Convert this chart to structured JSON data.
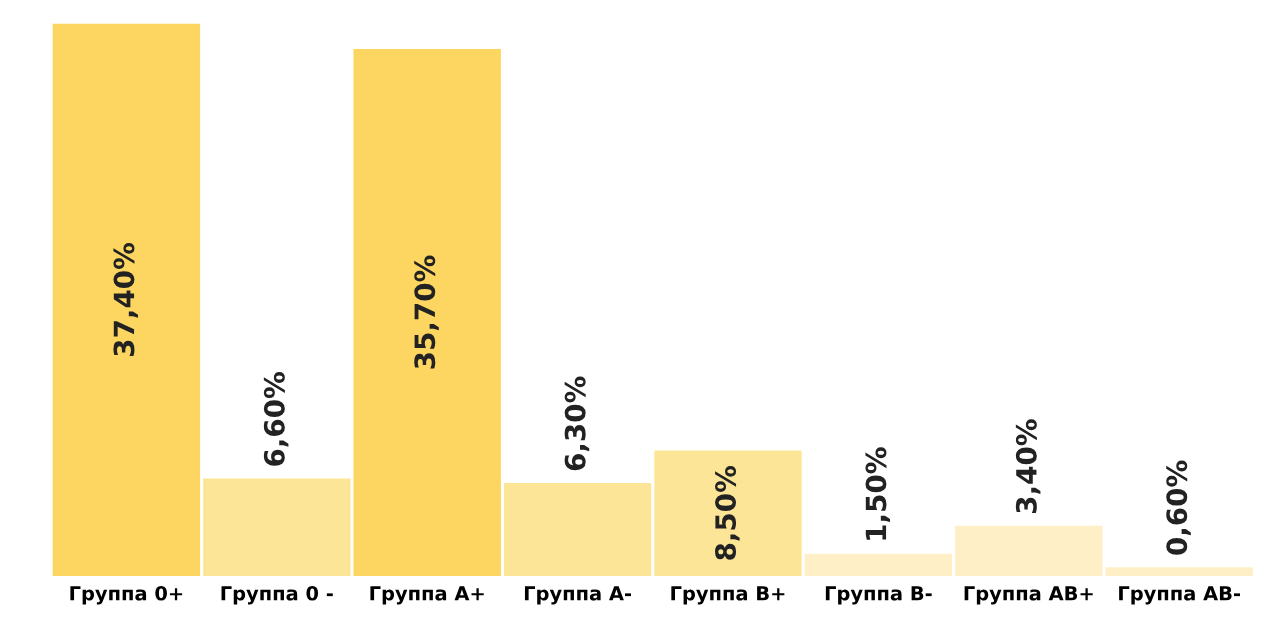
{
  "chart_data": {
    "type": "bar",
    "categories": [
      "Группа 0+",
      "Группа 0 -",
      "Группа A+",
      "Группа A-",
      "Группа B+",
      "Группа B-",
      "Группа AB+",
      "Группа AB-"
    ],
    "values": [
      37.4,
      6.6,
      35.7,
      6.3,
      8.5,
      1.5,
      3.4,
      0.6
    ],
    "value_labels": [
      "37,40%",
      "6,60%",
      "35,70%",
      "6,30%",
      "8,50%",
      "1,50%",
      "3,40%",
      "0,60%"
    ],
    "colors": [
      "#fcd660",
      "#fde597",
      "#fcd660",
      "#fde597",
      "#fde597",
      "#feefc6",
      "#feefc6",
      "#feefc6"
    ],
    "grid": false,
    "legend": false
  }
}
